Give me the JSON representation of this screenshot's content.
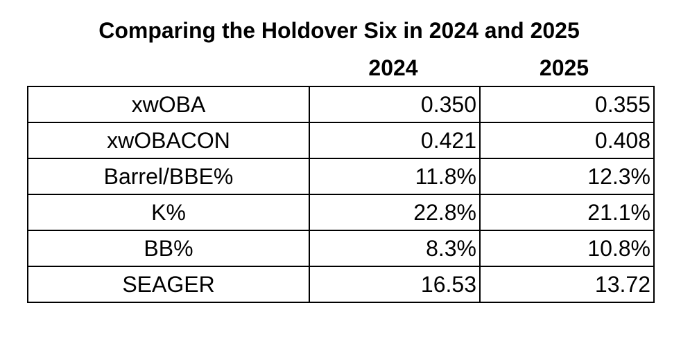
{
  "chart_data": {
    "type": "table",
    "title": "Comparing the Holdover Six in 2024 and 2025",
    "columns": [
      "",
      "2024",
      "2025"
    ],
    "rows": [
      {
        "metric": "xwOBA",
        "y2024": "0.350",
        "y2025": "0.355"
      },
      {
        "metric": "xwOBACON",
        "y2024": "0.421",
        "y2025": "0.408"
      },
      {
        "metric": "Barrel/BBE%",
        "y2024": "11.8%",
        "y2025": "12.3%"
      },
      {
        "metric": "K%",
        "y2024": "22.8%",
        "y2025": "21.1%"
      },
      {
        "metric": "BB%",
        "y2024": "8.3%",
        "y2025": "10.8%"
      },
      {
        "metric": "SEAGER",
        "y2024": "16.53",
        "y2025": "13.72"
      }
    ]
  }
}
